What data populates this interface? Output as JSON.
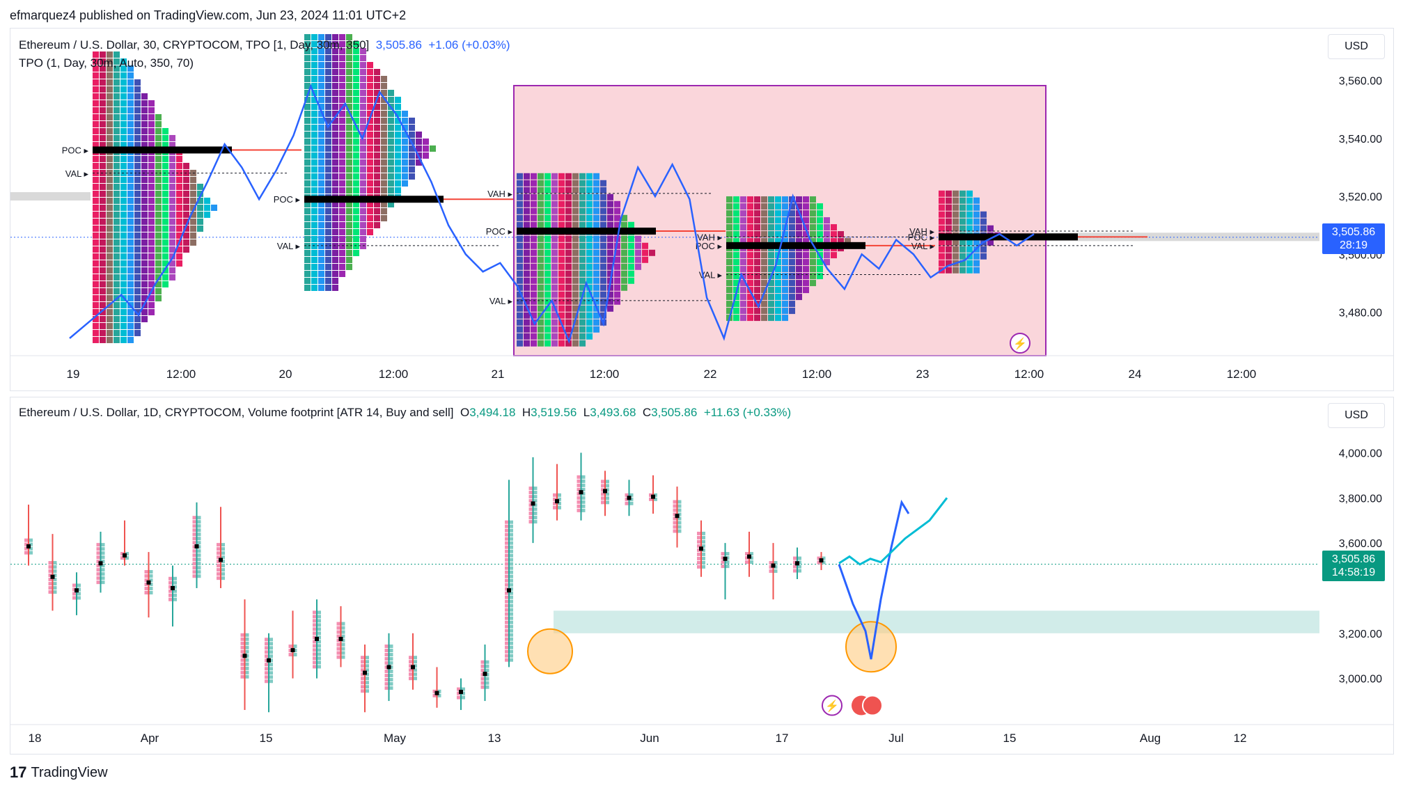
{
  "header": {
    "publisher": "efmarquez4 published on TradingView.com, Jun 23, 2024 11:01 UTC+2"
  },
  "pane1": {
    "title": "Ethereum / U.S. Dollar, 30, CRYPTOCOM, TPO [1, Day, 30m, 350]",
    "price": "3,505.86",
    "change": "+1.06 (+0.03%)",
    "indicator": "TPO (1, Day, 30m, Auto, 350, 70)",
    "currency": "USD",
    "badge_price": "3,505.86",
    "badge_time": "28:19",
    "badge_color": "#2962ff",
    "profile_labels": [
      "POC",
      "VAL",
      "VAH",
      "POC",
      "VAL",
      "VAH",
      "POC",
      "VAL",
      "VAH",
      "POC",
      "VAL",
      "VAH",
      "POC",
      "VAL"
    ]
  },
  "pane2": {
    "title": "Ethereum / U.S. Dollar, 1D, CRYPTOCOM, Volume footprint [ATR 14, Buy and sell]",
    "ohlc": {
      "o_label": "O",
      "o": "3,494.18",
      "h_label": "H",
      "h": "3,519.56",
      "l_label": "L",
      "l": "3,493.68",
      "c_label": "C",
      "c": "3,505.86",
      "change": "+11.63 (+0.33%)"
    },
    "currency": "USD",
    "badge_price": "3,505.86",
    "badge_time": "14:58:19",
    "badge_color": "#089981"
  },
  "footer": {
    "brand": "TradingView"
  },
  "chart_data": [
    {
      "type": "line",
      "title": "Ethereum / U.S. Dollar, 30, CRYPTOCOM, TPO [1, Day, 30m, 350]",
      "x_ticks": [
        "19",
        "12:00",
        "20",
        "12:00",
        "21",
        "12:00",
        "22",
        "12:00",
        "23",
        "12:00",
        "24",
        "12:00"
      ],
      "y_ticks": [
        3480,
        3500,
        3520,
        3540,
        3560
      ],
      "y_tick_labels": [
        "3,480.00",
        "3,500.00",
        "3,520.00",
        "3,540.00",
        "3,560.00"
      ],
      "ylim": [
        3465,
        3576
      ],
      "last_price": 3505.86,
      "series": [
        {
          "values": [
            3471,
            3476,
            3481,
            3486,
            3479,
            3490,
            3499,
            3513,
            3525,
            3538,
            3530,
            3519,
            3529,
            3541,
            3558,
            3544,
            3552,
            3540,
            3556,
            3548,
            3537,
            3525,
            3510,
            3500,
            3494,
            3497,
            3489,
            3476,
            3484,
            3470,
            3490,
            3476,
            3512,
            3530,
            3520,
            3531,
            3519,
            3485,
            3471,
            3493,
            3482,
            3496,
            3520,
            3505,
            3495,
            3488,
            3500,
            3495,
            3505,
            3500,
            3492,
            3496,
            3498,
            3504,
            3507,
            3503,
            3507
          ]
        }
      ],
      "profiles": [
        {
          "day": "19",
          "poc": 3536,
          "val": 3528
        },
        {
          "day": "20",
          "poc": 3519,
          "val": 3503
        },
        {
          "day": "21",
          "vah": 3521,
          "poc": 3508,
          "val": 3484
        },
        {
          "day": "22",
          "vah": 3506,
          "poc": 3503,
          "val": 3493
        },
        {
          "day": "23",
          "vah": 3508,
          "poc": 3506,
          "val": 3503
        }
      ]
    },
    {
      "type": "bar",
      "title": "Ethereum / U.S. Dollar, 1D, CRYPTOCOM, Volume footprint [ATR 14, Buy and sell]",
      "x_ticks": [
        "18",
        "Apr",
        "15",
        "May",
        "13",
        "Jun",
        "17",
        "Jul",
        "15",
        "Aug",
        "12"
      ],
      "y_ticks": [
        3000,
        3200,
        3400,
        3600,
        3800,
        4000
      ],
      "y_tick_labels": [
        "3,000.00",
        "3,200.00",
        "",
        "3,600.00",
        "3,800.00",
        "4,000.00"
      ],
      "ylim": [
        2820,
        4060
      ],
      "last_price": 3505.86,
      "zone": [
        3200,
        3300
      ],
      "projection": [
        3505,
        3330,
        3210,
        3085,
        3350,
        3580,
        3780,
        3730
      ],
      "alt_projection": [
        3510,
        3540,
        3505,
        3530,
        3515,
        3560,
        3620,
        3700,
        3800
      ],
      "candles": [
        {
          "o": 3620,
          "h": 3770,
          "l": 3500,
          "c": 3550
        },
        {
          "o": 3520,
          "h": 3640,
          "l": 3300,
          "c": 3380
        },
        {
          "o": 3360,
          "h": 3470,
          "l": 3280,
          "c": 3420
        },
        {
          "o": 3420,
          "h": 3650,
          "l": 3380,
          "c": 3600
        },
        {
          "o": 3560,
          "h": 3700,
          "l": 3500,
          "c": 3530
        },
        {
          "o": 3480,
          "h": 3560,
          "l": 3270,
          "c": 3370
        },
        {
          "o": 3350,
          "h": 3500,
          "l": 3230,
          "c": 3450
        },
        {
          "o": 3450,
          "h": 3780,
          "l": 3400,
          "c": 3720
        },
        {
          "o": 3600,
          "h": 3760,
          "l": 3400,
          "c": 3450
        },
        {
          "o": 3200,
          "h": 3350,
          "l": 2860,
          "c": 3000
        },
        {
          "o": 2980,
          "h": 3200,
          "l": 2850,
          "c": 3180
        },
        {
          "o": 3150,
          "h": 3300,
          "l": 3000,
          "c": 3100
        },
        {
          "o": 3050,
          "h": 3350,
          "l": 3000,
          "c": 3300
        },
        {
          "o": 3250,
          "h": 3320,
          "l": 3050,
          "c": 3100
        },
        {
          "o": 3100,
          "h": 3150,
          "l": 2850,
          "c": 2950
        },
        {
          "o": 2950,
          "h": 3200,
          "l": 2900,
          "c": 3150
        },
        {
          "o": 3100,
          "h": 3200,
          "l": 2950,
          "c": 3000
        },
        {
          "o": 2950,
          "h": 3050,
          "l": 2870,
          "c": 2920
        },
        {
          "o": 2920,
          "h": 3000,
          "l": 2860,
          "c": 2960
        },
        {
          "o": 2960,
          "h": 3150,
          "l": 2900,
          "c": 3080
        },
        {
          "o": 3080,
          "h": 3880,
          "l": 3050,
          "c": 3700
        },
        {
          "o": 3700,
          "h": 3980,
          "l": 3600,
          "c": 3850
        },
        {
          "o": 3820,
          "h": 3950,
          "l": 3700,
          "c": 3750
        },
        {
          "o": 3750,
          "h": 4000,
          "l": 3700,
          "c": 3900
        },
        {
          "o": 3880,
          "h": 3920,
          "l": 3720,
          "c": 3780
        },
        {
          "o": 3780,
          "h": 3880,
          "l": 3720,
          "c": 3820
        },
        {
          "o": 3820,
          "h": 3900,
          "l": 3730,
          "c": 3790
        },
        {
          "o": 3790,
          "h": 3850,
          "l": 3580,
          "c": 3650
        },
        {
          "o": 3650,
          "h": 3700,
          "l": 3450,
          "c": 3500
        },
        {
          "o": 3500,
          "h": 3600,
          "l": 3350,
          "c": 3560
        },
        {
          "o": 3560,
          "h": 3650,
          "l": 3450,
          "c": 3520
        },
        {
          "o": 3520,
          "h": 3600,
          "l": 3350,
          "c": 3480
        },
        {
          "o": 3480,
          "h": 3580,
          "l": 3440,
          "c": 3540
        },
        {
          "o": 3540,
          "h": 3560,
          "l": 3480,
          "c": 3506
        }
      ]
    }
  ]
}
